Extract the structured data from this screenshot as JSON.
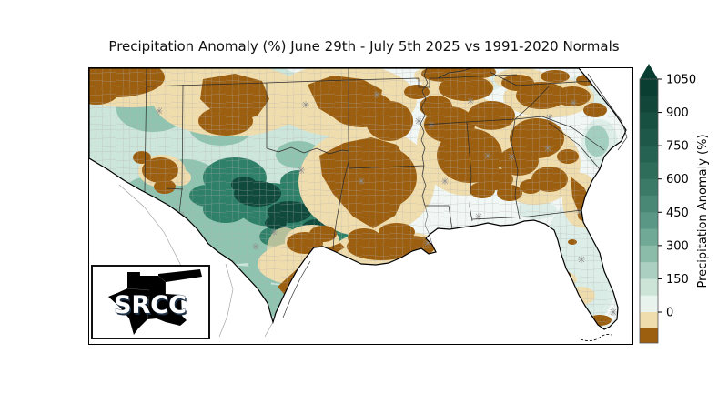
{
  "title": "Precipitation Anomaly (%) June 29th - July 5th 2025 vs 1991-2020 Normals",
  "colorbar": {
    "label": "Precipitation Anomaly (%)",
    "ticks": [
      "0",
      "150",
      "300",
      "450",
      "600",
      "750",
      "900",
      "1050"
    ],
    "tick_values": [
      0,
      150,
      300,
      450,
      600,
      750,
      900,
      1050
    ],
    "band_colors": [
      "#0b3e33",
      "#114639",
      "#174f40",
      "#1e5848",
      "#266251",
      "#2f6d5b",
      "#3a7a67",
      "#488875",
      "#5a9785",
      "#70a996",
      "#8bbcaa",
      "#abd0c1",
      "#cce3d8",
      "#e9f3ee"
    ],
    "below_zero_colors": [
      "#f0ddae",
      "#9c5e0f"
    ],
    "arrow_color": "#0b3e33"
  },
  "logo": {
    "text": "SRCC",
    "shape_color": "#3d5c80"
  },
  "map_colors": {
    "wet_extreme": "#0f4a3c",
    "wet_strong": "#2f8068",
    "wet_moderate": "#8fc4b1",
    "wet_light": "#cde6dc",
    "near_normal": "#f1f7f4",
    "dry_light": "#f0ddae",
    "dry": "#9c5e0f",
    "state_border": "#2b2b2b",
    "county_line": "#b0b0b0",
    "coastline": "#000000"
  }
}
